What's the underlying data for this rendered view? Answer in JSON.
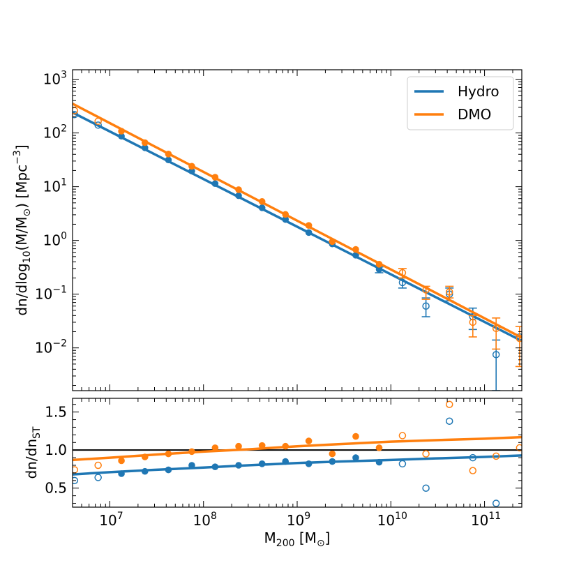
{
  "chart_data": [
    {
      "type": "scatter",
      "panel": "top",
      "title": "",
      "xlabel": {
        "base": "M",
        "sub": "200",
        "suffix": " [M",
        "suffix_sub": "⊙",
        "end": "]"
      },
      "ylabel": {
        "text": "dn/dlog",
        "sub": "10",
        "mid": "(M/M",
        "mid_sub": "⊙",
        "end": ") [Mpc",
        "sup": "−3",
        "close": "]"
      },
      "xscale": "log",
      "yscale": "log",
      "xlim": [
        4000000,
        250000000000
      ],
      "ylim": [
        0.0016,
        1500
      ],
      "xticks": [
        {
          "base": "10",
          "exp": "7"
        },
        {
          "base": "10",
          "exp": "8"
        },
        {
          "base": "10",
          "exp": "9"
        },
        {
          "base": "10",
          "exp": "10"
        },
        {
          "base": "10",
          "exp": "11"
        }
      ],
      "yticks": [
        {
          "base": "10",
          "exp": "−2"
        },
        {
          "base": "10",
          "exp": "−1"
        },
        {
          "base": "10",
          "exp": "0"
        },
        {
          "base": "10",
          "exp": "1"
        },
        {
          "base": "10",
          "exp": "2"
        },
        {
          "base": "10",
          "exp": "3"
        }
      ],
      "legend": {
        "placement": "top-right",
        "entries": [
          "Hydro",
          "DMO"
        ]
      },
      "grid": false,
      "series": [
        {
          "name": "Hydro",
          "color": "#1f77b4",
          "line": {
            "x": [
              4000000,
              250000000000
            ],
            "y": [
              240,
              0.0135
            ]
          },
          "filled": {
            "x": [
              13300000,
              23700000,
              42200000,
              75000000,
              133000000,
              237000000,
              422000000,
              750000000,
              1330000000,
              2370000000,
              4220000000,
              7500000000
            ],
            "y": [
              87,
              53,
              31.5,
              19.5,
              11.4,
              6.8,
              4.05,
              2.45,
              1.4,
              0.86,
              0.53,
              0.29
            ]
          },
          "open": {
            "x": [
              4200000,
              7500000,
              13300000000,
              23700000000,
              42200000000,
              75000000000,
              133000000000,
              237000000000
            ],
            "y": [
              220,
              140,
              0.165,
              0.06,
              0.1,
              0.038,
              0.0075,
              0.016
            ]
          },
          "errorbars": [
            {
              "x": 7500000000,
              "lo": 0.25,
              "hi": 0.32
            },
            {
              "x": 13300000000,
              "lo": 0.13,
              "hi": 0.2
            },
            {
              "x": 23700000000,
              "lo": 0.038,
              "hi": 0.085
            },
            {
              "x": 42200000000,
              "lo": 0.075,
              "hi": 0.13
            },
            {
              "x": 75000000000,
              "lo": 0.022,
              "hi": 0.055
            },
            {
              "x": 133000000000,
              "lo": 0.0016,
              "hi": 0.014
            }
          ]
        },
        {
          "name": "DMO",
          "color": "#ff7f0e",
          "line": {
            "x": [
              4000000,
              250000000000
            ],
            "y": [
              350,
              0.0155
            ]
          },
          "filled": {
            "x": [
              13300000,
              23700000,
              42200000,
              75000000,
              133000000,
              237000000,
              422000000,
              750000000,
              1330000000,
              2370000000,
              4220000000,
              7500000000
            ],
            "y": [
              108,
              66,
              40.5,
              24,
              15,
              8.8,
              5.3,
              3.05,
              1.9,
              0.95,
              0.68,
              0.36
            ]
          },
          "open": {
            "x": [
              4200000,
              7500000,
              13300000000,
              23700000000,
              42200000000,
              75000000000,
              133000000000,
              237000000000
            ],
            "y": [
              260,
              165,
              0.25,
              0.12,
              0.11,
              0.03,
              0.023,
              0.015
            ]
          },
          "errorbars": [
            {
              "x": 13300000000,
              "lo": 0.2,
              "hi": 0.3
            },
            {
              "x": 23700000000,
              "lo": 0.08,
              "hi": 0.14
            },
            {
              "x": 42200000000,
              "lo": 0.085,
              "hi": 0.14
            },
            {
              "x": 75000000000,
              "lo": 0.016,
              "hi": 0.04
            },
            {
              "x": 133000000000,
              "lo": 0.0095,
              "hi": 0.036
            },
            {
              "x": 237000000000,
              "lo": 0.0045,
              "hi": 0.025
            }
          ]
        }
      ]
    },
    {
      "type": "scatter",
      "panel": "bottom",
      "title": "",
      "xlabel": {
        "base": "M",
        "sub": "200",
        "suffix": " [M",
        "suffix_sub": "⊙",
        "end": "]"
      },
      "ylabel": {
        "text": "dn/dn",
        "sub": "ST"
      },
      "xscale": "log",
      "yscale": "linear",
      "xlim": [
        4000000,
        250000000000
      ],
      "ylim": [
        0.25,
        1.68
      ],
      "xticks": [
        {
          "base": "10",
          "exp": "7"
        },
        {
          "base": "10",
          "exp": "8"
        },
        {
          "base": "10",
          "exp": "9"
        },
        {
          "base": "10",
          "exp": "10"
        },
        {
          "base": "10",
          "exp": "11"
        }
      ],
      "yticks": [
        "0.5",
        "1.0",
        "1.5"
      ],
      "reference_line": 1.0,
      "grid": false,
      "series": [
        {
          "name": "Hydro",
          "color": "#1f77b4",
          "curve": {
            "x": [
              4000000,
              10000000,
              30000000,
              100000000,
              300000000,
              1000000000,
              3000000000,
              10000000000,
              30000000000,
              100000000000,
              250000000000
            ],
            "y": [
              0.68,
              0.71,
              0.74,
              0.77,
              0.8,
              0.83,
              0.85,
              0.87,
              0.89,
              0.91,
              0.93
            ]
          },
          "filled": {
            "x": [
              13300000,
              23700000,
              42200000,
              75000000,
              133000000,
              237000000,
              422000000,
              750000000,
              1330000000,
              2370000000,
              4220000000,
              7500000000
            ],
            "y": [
              0.69,
              0.72,
              0.74,
              0.8,
              0.78,
              0.8,
              0.82,
              0.85,
              0.82,
              0.85,
              0.9,
              0.84
            ]
          },
          "open": {
            "x": [
              4200000,
              7500000,
              13300000000,
              23700000000,
              42200000000,
              75000000000,
              133000000000
            ],
            "y": [
              0.6,
              0.64,
              0.82,
              0.5,
              1.38,
              0.9,
              0.3
            ]
          }
        },
        {
          "name": "DMO",
          "color": "#ff7f0e",
          "curve": {
            "x": [
              4000000,
              10000000,
              30000000,
              100000000,
              300000000,
              1000000000,
              3000000000,
              10000000000,
              30000000000,
              100000000000,
              250000000000
            ],
            "y": [
              0.87,
              0.9,
              0.94,
              0.98,
              1.01,
              1.05,
              1.08,
              1.11,
              1.13,
              1.15,
              1.17
            ]
          },
          "filled": {
            "x": [
              13300000,
              23700000,
              42200000,
              75000000,
              133000000,
              237000000,
              422000000,
              750000000,
              1330000000,
              2370000000,
              4220000000,
              7500000000
            ],
            "y": [
              0.86,
              0.91,
              0.95,
              0.98,
              1.03,
              1.05,
              1.06,
              1.05,
              1.12,
              0.95,
              1.18,
              1.03
            ]
          },
          "open": {
            "x": [
              4200000,
              7500000,
              13300000000,
              23700000000,
              42200000000,
              75000000000,
              133000000000,
              237000000000
            ],
            "y": [
              0.74,
              0.8,
              1.19,
              0.95,
              1.6,
              0.73,
              0.92,
              1.03
            ]
          }
        }
      ]
    }
  ]
}
